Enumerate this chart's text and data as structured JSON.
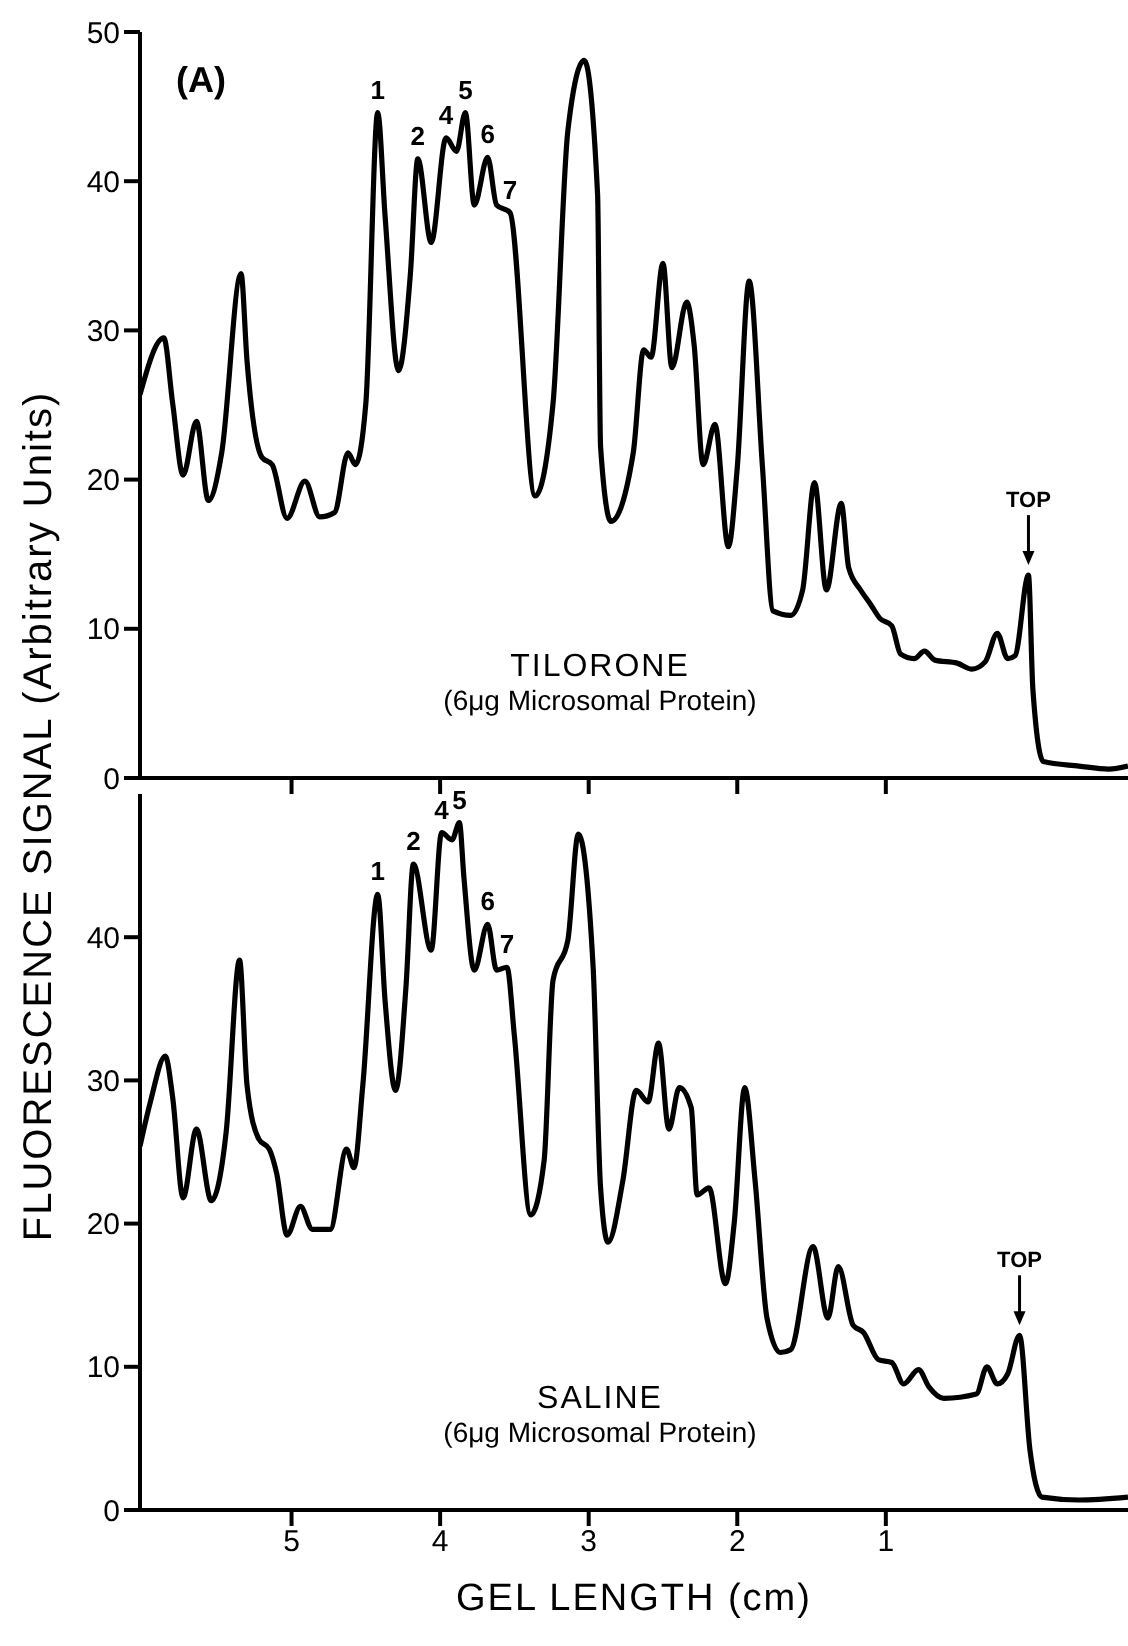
{
  "chart_data": [
    {
      "type": "line",
      "title": "(A)",
      "ylabel": "FLUORESCENCE SIGNAL (Arbitrary Units)",
      "xlim": [
        6.02,
        -0.63
      ],
      "xticks": [
        {
          "value": 5,
          "label": null
        },
        {
          "value": 4,
          "label": null
        },
        {
          "value": 3,
          "label": null
        },
        {
          "value": 2,
          "label": null
        },
        {
          "value": 1,
          "label": null
        }
      ],
      "ylim": [
        0,
        50
      ],
      "yticks": [
        0,
        10,
        20,
        30,
        40,
        50
      ],
      "tick_labels": "y",
      "marker": "none",
      "series": [
        {
          "color": "#000000",
          "x": [
            6.02,
            5.86,
            5.8,
            5.73,
            5.64,
            5.56,
            5.47,
            5.34,
            5.3,
            5.2,
            5.13,
            5.03,
            4.91,
            4.81,
            4.71,
            4.62,
            4.57,
            4.5,
            4.42,
            4.37,
            4.28,
            4.2,
            4.15,
            4.06,
            3.96,
            3.89,
            3.83,
            3.77,
            3.68,
            3.62,
            3.53,
            3.36,
            3.24,
            3.14,
            3.03,
            2.94,
            2.92,
            2.85,
            2.7,
            2.63,
            2.58,
            2.5,
            2.44,
            2.34,
            2.29,
            2.23,
            2.15,
            2.06,
            2.0,
            1.92,
            1.83,
            1.76,
            1.64,
            1.56,
            1.48,
            1.4,
            1.3,
            1.25,
            1.17,
            1.1,
            1.04,
            0.96,
            0.9,
            0.81,
            0.74,
            0.67,
            0.52,
            0.42,
            0.33,
            0.25,
            0.18,
            0.13,
            0.04,
            0.01,
            -0.06,
            -0.3,
            -0.5,
            -0.63
          ],
          "values": [
            25.7,
            29.5,
            25.1,
            20.3,
            23.9,
            18.6,
            21.8,
            33.8,
            28.0,
            21.5,
            21.0,
            17.4,
            19.9,
            17.5,
            17.8,
            21.8,
            21.0,
            25.1,
            44.6,
            37.6,
            27.3,
            33.8,
            41.5,
            35.9,
            42.9,
            42.0,
            44.6,
            38.4,
            41.6,
            38.4,
            37.9,
            18.9,
            25.1,
            43.4,
            48.1,
            39.1,
            22.2,
            17.2,
            21.8,
            28.7,
            28.2,
            34.5,
            27.5,
            31.9,
            29.0,
            21.0,
            23.7,
            15.5,
            20.8,
            33.3,
            20.8,
            11.2,
            10.9,
            12.6,
            19.8,
            12.6,
            18.4,
            14.1,
            12.6,
            11.6,
            10.7,
            10.2,
            8.3,
            8.0,
            8.5,
            7.9,
            7.7,
            7.3,
            7.8,
            9.7,
            8.0,
            8.2,
            13.6,
            5.9,
            1.1,
            0.8,
            0.6,
            0.8
          ]
        }
      ],
      "annotations": [
        "TILORONE",
        "(6μg Microsomal Protein)",
        {
          "text": "1",
          "x": 4.42,
          "y": 44.6
        },
        {
          "text": "2",
          "x": 4.15,
          "y": 41.5
        },
        {
          "text": "4",
          "x": 3.96,
          "y": 42.9
        },
        {
          "text": "5",
          "x": 3.83,
          "y": 44.6
        },
        {
          "text": "6",
          "x": 3.68,
          "y": 41.6
        },
        {
          "text": "7",
          "x": 3.53,
          "y": 37.9
        },
        {
          "text": "TOP",
          "x": 0.04,
          "y": 13.6
        }
      ]
    },
    {
      "type": "line",
      "xlabel": "GEL LENGTH (cm)",
      "xlim": [
        6.02,
        -0.63
      ],
      "xticks": [
        5,
        4,
        3,
        2,
        1
      ],
      "ylim": [
        0,
        50
      ],
      "yticks": [
        0,
        10,
        20,
        30,
        40
      ],
      "marker": "none",
      "series": [
        {
          "color": "#000000",
          "x": [
            6.02,
            5.95,
            5.85,
            5.8,
            5.73,
            5.64,
            5.54,
            5.44,
            5.35,
            5.3,
            5.22,
            5.15,
            5.1,
            5.03,
            4.94,
            4.86,
            4.74,
            4.63,
            4.58,
            4.52,
            4.42,
            4.37,
            4.3,
            4.23,
            4.18,
            4.06,
            3.99,
            3.92,
            3.87,
            3.84,
            3.77,
            3.68,
            3.62,
            3.55,
            3.5,
            3.39,
            3.3,
            3.24,
            3.14,
            3.07,
            2.97,
            2.92,
            2.87,
            2.77,
            2.68,
            2.6,
            2.53,
            2.46,
            2.39,
            2.31,
            2.27,
            2.19,
            2.08,
            2.02,
            1.95,
            1.88,
            1.8,
            1.71,
            1.64,
            1.49,
            1.39,
            1.32,
            1.22,
            1.15,
            1.05,
            0.96,
            0.88,
            0.78,
            0.71,
            0.61,
            0.39,
            0.32,
            0.25,
            0.18,
            0.1,
            0.03,
            -0.05,
            -0.3,
            -0.63
          ],
          "values": [
            25.4,
            28.5,
            31.7,
            28.8,
            21.8,
            26.6,
            21.6,
            26.4,
            38.4,
            29.7,
            25.9,
            25.2,
            23.5,
            19.2,
            21.2,
            19.6,
            19.6,
            25.2,
            23.9,
            29.7,
            43.0,
            35.5,
            29.3,
            36.5,
            45.1,
            39.1,
            47.3,
            46.8,
            48.0,
            44.2,
            37.7,
            40.9,
            37.7,
            37.9,
            33.1,
            20.6,
            24.4,
            37.0,
            39.8,
            47.2,
            37.9,
            22.5,
            18.7,
            23.0,
            29.3,
            28.5,
            32.6,
            26.6,
            29.5,
            28.1,
            22.0,
            22.5,
            15.8,
            20.1,
            29.5,
            23.0,
            13.4,
            11.0,
            11.2,
            18.4,
            13.4,
            17.0,
            12.9,
            12.4,
            10.5,
            10.3,
            8.8,
            9.8,
            8.6,
            7.8,
            8.1,
            10.0,
            8.8,
            9.5,
            12.2,
            4.2,
            0.9,
            0.7,
            0.9
          ]
        }
      ],
      "annotations": [
        "SALINE",
        "(6μg Microsomal Protein)",
        {
          "text": "1",
          "x": 4.42,
          "y": 43.0
        },
        {
          "text": "2",
          "x": 4.18,
          "y": 45.1
        },
        {
          "text": "4",
          "x": 3.99,
          "y": 47.3
        },
        {
          "text": "5",
          "x": 3.87,
          "y": 48.0
        },
        {
          "text": "6",
          "x": 3.68,
          "y": 40.9
        },
        {
          "text": "7",
          "x": 3.55,
          "y": 37.9
        },
        {
          "text": "TOP",
          "x": 0.1,
          "y": 12.2
        }
      ]
    }
  ]
}
